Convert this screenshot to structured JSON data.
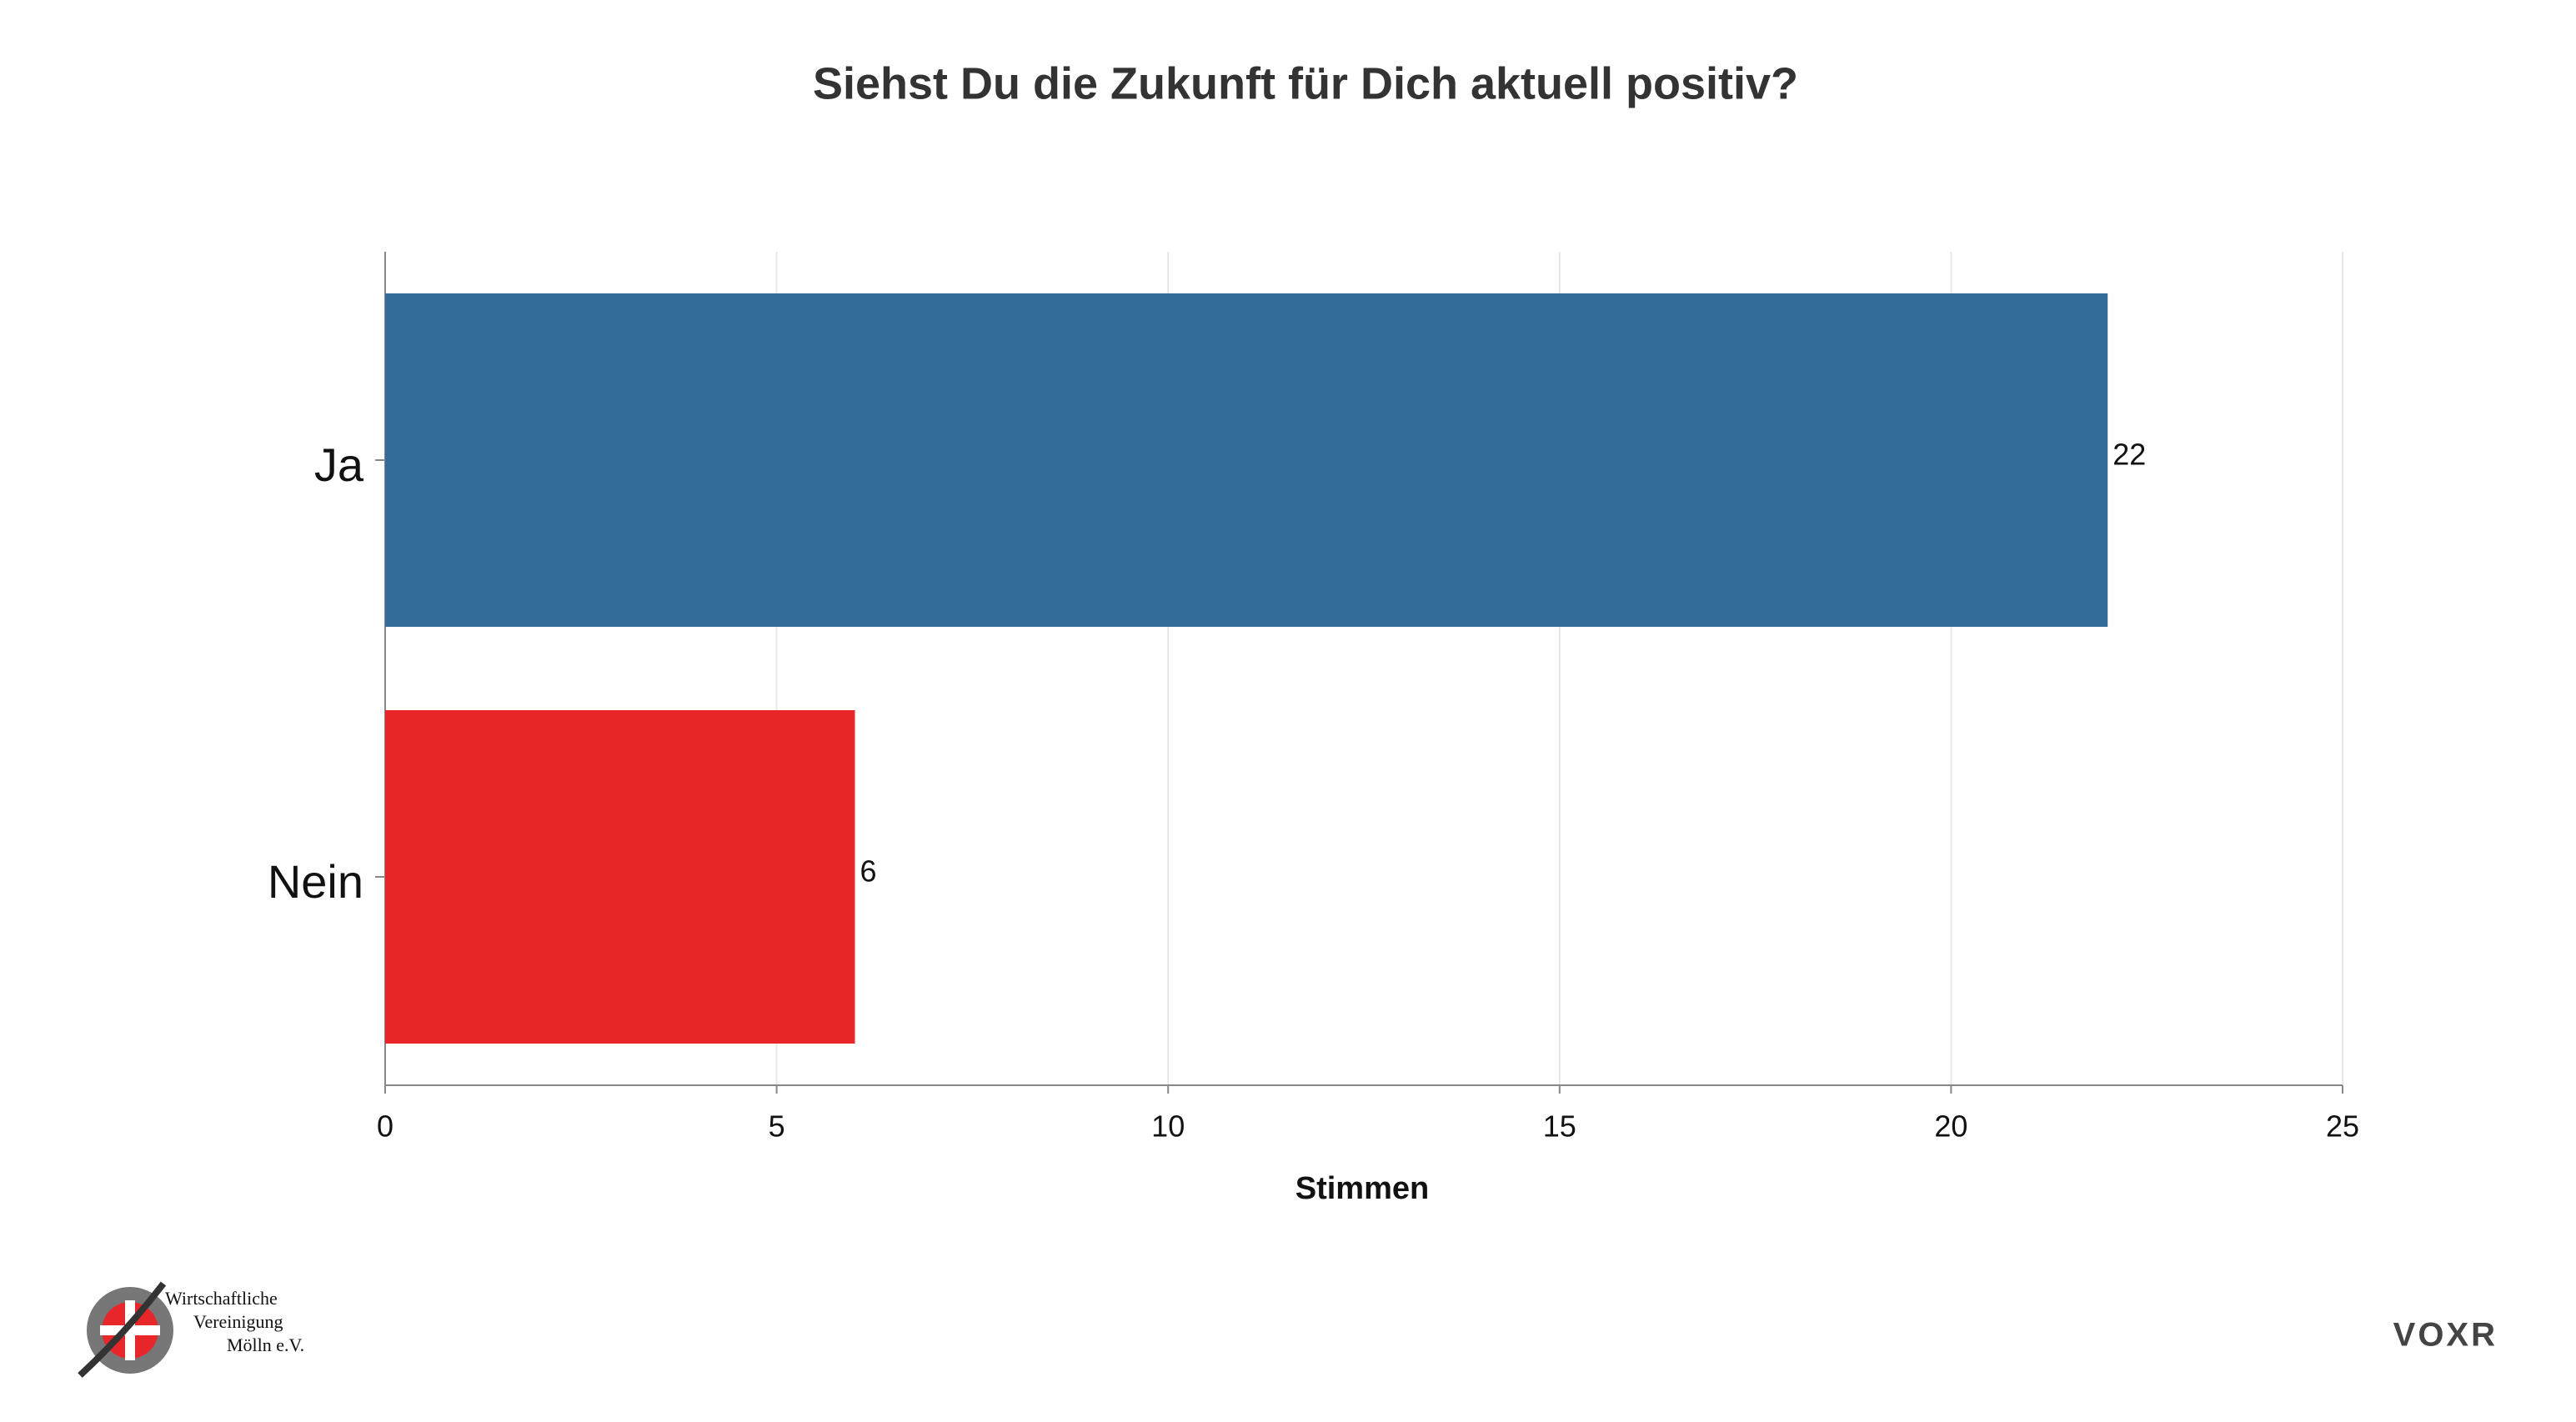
{
  "chart_data": {
    "type": "bar",
    "orientation": "horizontal",
    "title": "Siehst Du die Zukunft für Dich aktuell positiv?",
    "categories": [
      "Ja",
      "Nein"
    ],
    "values": [
      22,
      6
    ],
    "colors": [
      "#356c99",
      "#e8272a"
    ],
    "xlabel": "Stimmen",
    "xlim": [
      0,
      25
    ],
    "xticks": [
      0,
      5,
      10,
      15,
      20,
      25
    ],
    "grid": true
  },
  "footer": {
    "left_logo": [
      "Wirtschaftliche",
      "Vereinigung",
      "Mölln e.V."
    ],
    "right_logo": "VOXR"
  }
}
